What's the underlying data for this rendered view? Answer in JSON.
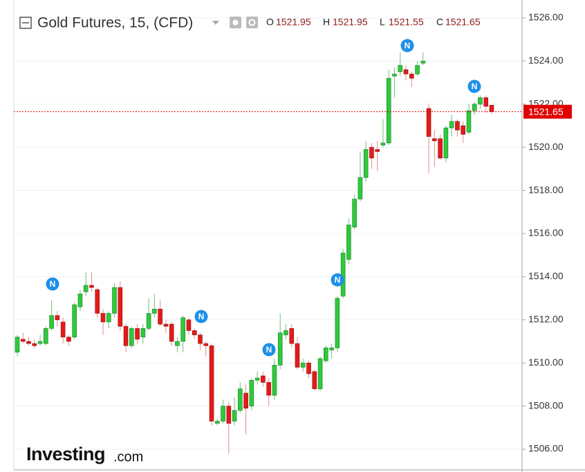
{
  "chart_data": {
    "type": "candlestick",
    "title": "Gold Futures, 15, (CFD)",
    "ohlc_header": [
      {
        "label": "O",
        "value": "1521.95"
      },
      {
        "label": "H",
        "value": "1521.95"
      },
      {
        "label": "L",
        "value": "1521.55"
      },
      {
        "label": "C",
        "value": "1521.65"
      }
    ],
    "open": [
      1510.5,
      1511.1,
      1511.0,
      1510.9,
      1510.9,
      1510.9,
      1511.6,
      1512.2,
      1511.9,
      1511.2,
      1511.2,
      1512.6,
      1513.3,
      1513.6,
      1513.4,
      1512.3,
      1511.9,
      1512.3,
      1513.5,
      1511.7,
      1510.8,
      1511.6,
      1511.2,
      1511.6,
      1512.3,
      1512.5,
      1511.8,
      1511.8,
      1510.8,
      1511.0,
      1512.0,
      1511.5,
      1511.3,
      1510.9,
      1510.8,
      1507.2,
      1507.3,
      1508.0,
      1507.3,
      1507.8,
      1508.6,
      1508.0,
      1509.2,
      1509.4,
      1509.1,
      1508.5,
      1509.9,
      1511.3,
      1511.6,
      1510.9,
      1509.8,
      1510.0,
      1509.6,
      1508.8,
      1510.1,
      1510.6,
      1510.7,
      1513.1,
      1514.8,
      1516.3,
      1517.6,
      1518.6,
      1520.0,
      1519.9,
      1520.1,
      1520.2,
      1523.3,
      1523.5,
      1523.6,
      1523.4,
      1523.4,
      1523.9,
      1521.8,
      1520.4,
      1520.4,
      1519.5,
      1520.9,
      1521.2,
      1521.0,
      1520.7,
      1521.7,
      1522.0,
      1522.3,
      1521.95
    ],
    "high": [
      1511.3,
      1511.4,
      1511.2,
      1511.1,
      1511.3,
      1511.7,
      1512.9,
      1512.4,
      1512.1,
      1511.3,
      1512.8,
      1513.4,
      1514.2,
      1514.2,
      1513.5,
      1512.5,
      1512.4,
      1513.7,
      1513.8,
      1511.8,
      1511.7,
      1511.8,
      1511.8,
      1513.0,
      1513.2,
      1512.9,
      1512.0,
      1511.9,
      1511.2,
      1512.2,
      1512.1,
      1511.6,
      1511.4,
      1511.0,
      1510.9,
      1507.4,
      1508.3,
      1508.2,
      1508.4,
      1509.1,
      1509.0,
      1509.3,
      1509.6,
      1509.6,
      1509.3,
      1510.2,
      1512.3,
      1511.8,
      1511.8,
      1511.2,
      1510.2,
      1510.1,
      1509.7,
      1510.3,
      1510.8,
      1510.9,
      1513.1,
      1515.3,
      1516.7,
      1517.8,
      1519.8,
      1520.3,
      1520.2,
      1520.3,
      1521.3,
      1523.6,
      1523.7,
      1524.4,
      1523.8,
      1523.5,
      1524.0,
      1524.4,
      1522.0,
      1520.8,
      1520.6,
      1521.0,
      1521.5,
      1521.3,
      1521.2,
      1522.0,
      1522.1,
      1522.4,
      1522.4,
      1521.95
    ],
    "low": [
      1510.3,
      1510.9,
      1510.8,
      1510.7,
      1510.8,
      1510.8,
      1511.5,
      1511.7,
      1510.9,
      1510.8,
      1511.1,
      1512.4,
      1513.1,
      1513.3,
      1512.1,
      1511.3,
      1511.6,
      1512.1,
      1511.5,
      1510.5,
      1510.7,
      1510.9,
      1510.9,
      1511.5,
      1512.1,
      1511.7,
      1511.4,
      1510.8,
      1510.5,
      1510.5,
      1511.3,
      1511.1,
      1510.6,
      1510.3,
      1507.1,
      1507.1,
      1507.2,
      1505.8,
      1507.1,
      1507.7,
      1506.7,
      1507.8,
      1509.0,
      1508.9,
      1508.0,
      1508.3,
      1509.7,
      1511.1,
      1510.7,
      1509.7,
      1509.6,
      1509.3,
      1508.7,
      1508.7,
      1510.0,
      1510.2,
      1510.5,
      1513.0,
      1514.6,
      1516.2,
      1517.5,
      1518.4,
      1519.0,
      1518.9,
      1520.0,
      1520.1,
      1522.3,
      1523.3,
      1523.1,
      1522.8,
      1523.3,
      1523.8,
      1518.8,
      1519.1,
      1519.4,
      1519.3,
      1520.5,
      1520.5,
      1520.2,
      1520.6,
      1521.5,
      1521.8,
      1521.6,
      1521.55
    ],
    "close": [
      1511.2,
      1511.0,
      1510.9,
      1510.8,
      1511.0,
      1511.6,
      1512.2,
      1512.0,
      1511.2,
      1511.0,
      1512.7,
      1513.2,
      1513.6,
      1513.5,
      1512.3,
      1511.9,
      1512.3,
      1513.5,
      1511.7,
      1510.8,
      1511.6,
      1511.1,
      1511.6,
      1512.3,
      1512.5,
      1511.8,
      1511.7,
      1511.0,
      1511.0,
      1512.1,
      1511.5,
      1511.3,
      1510.9,
      1510.8,
      1507.3,
      1507.3,
      1508.0,
      1507.2,
      1507.8,
      1508.8,
      1507.9,
      1509.2,
      1509.3,
      1509.1,
      1508.5,
      1509.9,
      1511.4,
      1511.5,
      1510.9,
      1509.8,
      1510.0,
      1509.5,
      1508.8,
      1510.2,
      1510.7,
      1510.7,
      1513.0,
      1515.1,
      1516.4,
      1517.6,
      1518.6,
      1519.9,
      1519.5,
      1519.8,
      1520.2,
      1523.2,
      1523.4,
      1523.8,
      1523.4,
      1523.2,
      1523.8,
      1524.0,
      1520.5,
      1520.3,
      1519.5,
      1520.9,
      1521.2,
      1520.8,
      1520.6,
      1521.7,
      1522.0,
      1522.3,
      1521.9,
      1521.65
    ],
    "up_color": "#2ec93c",
    "down_color": "#e51a1a",
    "last_price": 1521.65,
    "last_price_label": "1521.65",
    "last_price_color": "#e00000",
    "ylim": [
      1505.04,
      1526.67
    ],
    "yticks": [
      {
        "value": 1506,
        "label": "1506.00"
      },
      {
        "value": 1508,
        "label": "1508.00"
      },
      {
        "value": 1510,
        "label": "1510.00"
      },
      {
        "value": 1512,
        "label": "1512.00"
      },
      {
        "value": 1514,
        "label": "1514.00"
      },
      {
        "value": 1516,
        "label": "1516.00"
      },
      {
        "value": 1518,
        "label": "1518.00"
      },
      {
        "value": 1520,
        "label": "1520.00"
      },
      {
        "value": 1522,
        "label": "1522.00"
      },
      {
        "value": 1524,
        "label": "1524.00"
      },
      {
        "value": 1526,
        "label": "1526.00"
      }
    ],
    "grid": true,
    "news_marker_label": "N",
    "logo": {
      "brand": "Investing",
      "suffix": ".com"
    }
  }
}
